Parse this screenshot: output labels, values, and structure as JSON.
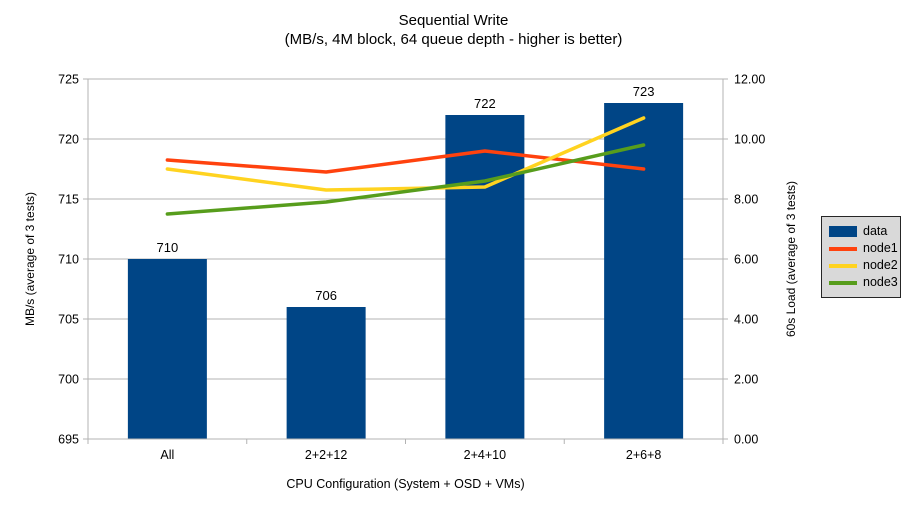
{
  "chart_data": {
    "type": "bar+line",
    "title": "Sequential Write",
    "subtitle": "(MB/s, 4M block, 64 queue depth - higher is better)",
    "xlabel": "CPU Configuration (System + OSD + VMs)",
    "ylabel_left": "MB/s (average of 3 tests)",
    "ylabel_right": "60s Load (average of 3 tests)",
    "categories": [
      "All",
      "2+2+12",
      "2+4+10",
      "2+6+8"
    ],
    "bar_series": {
      "name": "data",
      "axis": "left",
      "values": [
        710,
        706,
        722,
        723
      ],
      "labels": [
        "710",
        "706",
        "722",
        "723"
      ],
      "color": "#004586"
    },
    "line_series": [
      {
        "name": "node1",
        "axis": "right",
        "values": [
          9.3,
          8.9,
          9.6,
          9.0
        ],
        "color": "#ff420e"
      },
      {
        "name": "node2",
        "axis": "right",
        "values": [
          9.0,
          8.3,
          8.4,
          10.7
        ],
        "color": "#ffd320"
      },
      {
        "name": "node3",
        "axis": "right",
        "values": [
          7.5,
          7.9,
          8.6,
          9.8
        ],
        "color": "#579d1c"
      }
    ],
    "left_axis": {
      "min": 695,
      "max": 725,
      "ticks": [
        {
          "v": 695,
          "label": "695"
        },
        {
          "v": 700,
          "label": "700"
        },
        {
          "v": 705,
          "label": "705"
        },
        {
          "v": 710,
          "label": "710"
        },
        {
          "v": 715,
          "label": "715"
        },
        {
          "v": 720,
          "label": "720"
        },
        {
          "v": 725,
          "label": "725"
        }
      ]
    },
    "right_axis": {
      "min": 0,
      "max": 12,
      "ticks": [
        {
          "v": 0,
          "label": "0.00"
        },
        {
          "v": 2,
          "label": "2.00"
        },
        {
          "v": 4,
          "label": "4.00"
        },
        {
          "v": 6,
          "label": "6.00"
        },
        {
          "v": 8,
          "label": "8.00"
        },
        {
          "v": 10,
          "label": "10.00"
        },
        {
          "v": 12,
          "label": "12.00"
        }
      ]
    },
    "legend": {
      "position": "right",
      "entries": [
        {
          "label": "data",
          "swatch": "bar",
          "color": "#004586"
        },
        {
          "label": "node1",
          "swatch": "line",
          "color": "#ff420e"
        },
        {
          "label": "node2",
          "swatch": "line",
          "color": "#ffd320"
        },
        {
          "label": "node3",
          "swatch": "line",
          "color": "#579d1c"
        }
      ]
    },
    "grid": "horizontal",
    "colors": {
      "background": "#ffffff",
      "grid": "#b3b3b3",
      "axis": "#b3b3b3",
      "legend_bg": "#d9d9d9",
      "legend_border": "#262626",
      "text": "#000000"
    }
  }
}
